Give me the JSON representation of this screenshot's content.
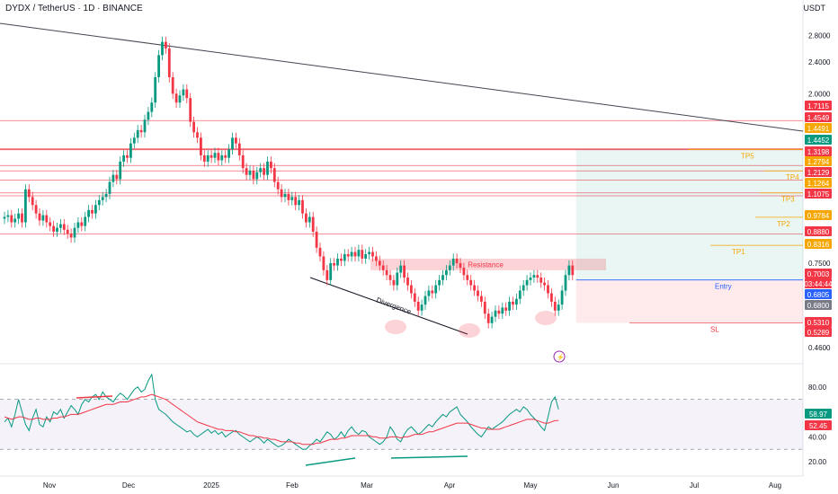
{
  "header": {
    "symbol_title": "DYDX / TetherUS · 1D · BINANCE",
    "currency": "USDT"
  },
  "chart_data": [
    {
      "type": "candlestick",
      "title": "DYDX / TetherUS · 1D · BINANCE",
      "y_scale": "log",
      "ylim": [
        0.43,
        3.1
      ],
      "y_ticks": [
        {
          "value": 2.8,
          "label": "2.8000"
        },
        {
          "value": 2.4,
          "label": "2.4000"
        },
        {
          "value": 2.0,
          "label": "2.0000"
        },
        {
          "value": 0.75,
          "label": "0.7500"
        },
        {
          "value": 0.46,
          "label": "0.4600"
        }
      ],
      "x_ticks": [
        "Nov",
        "Dec",
        "2025",
        "Feb",
        "Mar",
        "Apr",
        "May",
        "Jun",
        "Jul",
        "Aug"
      ],
      "price_path_close": [
        [
          0.98,
          0.99,
          0.95,
          0.97,
          1.0,
          0.95,
          1.15,
          1.1,
          1.05,
          1.0,
          0.96,
          0.99,
          0.95,
          0.93,
          0.9,
          0.92,
          0.94,
          0.91,
          0.89,
          0.87,
          0.92,
          0.95,
          0.93,
          0.98,
          1.02,
          1.0,
          1.05,
          1.08,
          1.1,
          1.12,
          1.2,
          1.25,
          1.22,
          1.35,
          1.4,
          1.38,
          1.5,
          1.55,
          1.62,
          1.6,
          1.72,
          1.8,
          1.9,
          2.2,
          2.5,
          2.7,
          2.6,
          2.2,
          2.0,
          1.9,
          1.98,
          2.05,
          1.95,
          1.7,
          1.6,
          1.55,
          1.4,
          1.35,
          1.4,
          1.38,
          1.42,
          1.36,
          1.4,
          1.38,
          1.45,
          1.55,
          1.5,
          1.4,
          1.3,
          1.25,
          1.28,
          1.22,
          1.27,
          1.3,
          1.25,
          1.35,
          1.3,
          1.2,
          1.15,
          1.1,
          1.12,
          1.08,
          1.1,
          1.05,
          1.08,
          1.0,
          0.95,
          0.98,
          0.9,
          0.82,
          0.78,
          0.72,
          0.68,
          0.75,
          0.74,
          0.77,
          0.76,
          0.79,
          0.78,
          0.8,
          0.78,
          0.81,
          0.77,
          0.79,
          0.8,
          0.78,
          0.76,
          0.74,
          0.72,
          0.7,
          0.68,
          0.66,
          0.71,
          0.74,
          0.69,
          0.66,
          0.63,
          0.6,
          0.57,
          0.59,
          0.62,
          0.64,
          0.63,
          0.66,
          0.68,
          0.7,
          0.72,
          0.74,
          0.77,
          0.75,
          0.73,
          0.7,
          0.68,
          0.66,
          0.64,
          0.62,
          0.6,
          0.56,
          0.53,
          0.55,
          0.57,
          0.56,
          0.58,
          0.57,
          0.6,
          0.59,
          0.61,
          0.64,
          0.66,
          0.68,
          0.69,
          0.7,
          0.69,
          0.67,
          0.66,
          0.63,
          0.6,
          0.57,
          0.59,
          0.64,
          0.7,
          0.74,
          0.7
        ]
      ],
      "resistance_zone": {
        "label": "Resistance",
        "low": 0.72,
        "high": 0.77
      },
      "horizontal_levels": [
        1.7115,
        1.4549,
        1.4491,
        1.4452,
        1.3198,
        1.2794,
        1.2129,
        1.1264,
        1.1075,
        0.888
      ],
      "trade_setup": {
        "entry_label": "Entry",
        "entry": 0.6805,
        "stop_label": "SL",
        "stop": 0.531,
        "targets": [
          {
            "label": "TP1",
            "value": 0.8316
          },
          {
            "label": "TP2",
            "value": 0.9784
          },
          {
            "label": "TP3",
            "value": 1.1264
          },
          {
            "label": "TP4",
            "value": 1.2794
          },
          {
            "label": "TP5",
            "value": 1.4491
          }
        ]
      },
      "annotations": [
        "Divergence"
      ],
      "price_labels": [
        {
          "label": "1.7115",
          "color": "#f23645"
        },
        {
          "label": "1.4549",
          "color": "#f23645"
        },
        {
          "label": "1.4491",
          "color": "#f7a600"
        },
        {
          "label": "1.4452",
          "color": "#089981"
        },
        {
          "label": "1.3198",
          "color": "#f23645"
        },
        {
          "label": "1.2794",
          "color": "#f7a600"
        },
        {
          "label": "1.2129",
          "color": "#f23645"
        },
        {
          "label": "1.1264",
          "color": "#f7a600"
        },
        {
          "label": "1.1075",
          "color": "#f23645"
        },
        {
          "label": "0.9784",
          "color": "#f7a600"
        },
        {
          "label": "0.8880",
          "color": "#f23645"
        },
        {
          "label": "0.8316",
          "color": "#f7a600"
        },
        {
          "label": "0.7003",
          "color": "#f23645"
        },
        {
          "label": "03:44:44",
          "color": "#f23645"
        },
        {
          "label": "0.6805",
          "color": "#2962ff"
        },
        {
          "label": "0.6800",
          "color": "#787b86"
        },
        {
          "label": "0.5310",
          "color": "#f23645"
        },
        {
          "label": "0.5289",
          "color": "#f23645"
        }
      ]
    },
    {
      "type": "line",
      "ylim": [
        10,
        95
      ],
      "y_ticks": [
        {
          "value": 80,
          "label": "80.00"
        },
        {
          "value": 40,
          "label": "40.00"
        },
        {
          "value": 20,
          "label": "20.00"
        }
      ],
      "bands": {
        "upper": 70,
        "lower": 30
      },
      "series": [
        {
          "values": [
            52,
            55,
            48,
            58,
            70,
            60,
            50,
            45,
            55,
            62,
            50,
            48,
            56,
            52,
            60,
            58,
            62,
            55,
            60,
            65,
            62,
            58,
            66,
            70,
            68,
            72,
            74,
            70,
            76,
            72,
            70,
            68,
            72,
            75,
            73,
            70,
            74,
            78,
            80,
            76,
            78,
            85,
            90,
            70,
            62,
            60,
            58,
            55,
            52,
            50,
            48,
            46,
            44,
            45,
            42,
            40,
            42,
            44,
            46,
            43,
            45,
            42,
            44,
            40,
            42,
            44,
            45,
            42,
            40,
            38,
            36,
            38,
            40,
            38,
            35,
            38,
            36,
            34,
            32,
            33,
            35,
            38,
            36,
            34,
            32,
            30,
            30,
            33,
            35,
            38,
            36,
            40,
            44,
            42,
            38,
            40,
            44,
            40,
            45,
            48,
            44,
            42,
            45,
            44,
            40,
            38,
            36,
            34,
            36,
            40,
            48,
            44,
            38,
            36,
            42,
            46,
            48,
            45,
            42,
            44,
            47,
            50,
            48,
            52,
            55,
            58,
            56,
            60,
            62,
            64,
            58,
            55,
            52,
            48,
            45,
            42,
            40,
            44,
            48,
            46,
            48,
            50,
            52,
            55,
            58,
            60,
            62,
            60,
            64,
            62,
            58,
            55,
            52,
            48,
            45,
            56,
            68,
            72,
            62
          ]
        },
        {
          "values": [
            56,
            55,
            54,
            55,
            56,
            56,
            55,
            54,
            54,
            55,
            55,
            54,
            54,
            54,
            55,
            55,
            56,
            56,
            57,
            58,
            58,
            58,
            59,
            60,
            61,
            62,
            63,
            64,
            65,
            66,
            66,
            66,
            67,
            68,
            68,
            68,
            69,
            70,
            71,
            72,
            72,
            73,
            74,
            73,
            72,
            71,
            70,
            68,
            66,
            64,
            62,
            60,
            58,
            56,
            54,
            52,
            51,
            50,
            49,
            48,
            47,
            46,
            46,
            45,
            45,
            45,
            44,
            44,
            43,
            42,
            41,
            41,
            40,
            40,
            39,
            39,
            38,
            38,
            37,
            36,
            36,
            36,
            36,
            35,
            35,
            34,
            34,
            34,
            34,
            35,
            35,
            36,
            37,
            38,
            38,
            38,
            39,
            39,
            40,
            41,
            41,
            41,
            41,
            41,
            41,
            40,
            40,
            39,
            39,
            39,
            40,
            40,
            40,
            39,
            40,
            40,
            41,
            42,
            42,
            42,
            43,
            44,
            44,
            45,
            46,
            47,
            48,
            49,
            50,
            51,
            51,
            51,
            51,
            50,
            49,
            48,
            47,
            47,
            46,
            46,
            46,
            46,
            47,
            48,
            49,
            50,
            51,
            52,
            53,
            54,
            54,
            54,
            53,
            52,
            51,
            51,
            52,
            53,
            53
          ]
        }
      ],
      "price_labels": [
        {
          "label": "58.97",
          "color": "#089981"
        },
        {
          "label": "52.45",
          "color": "#f23645"
        }
      ]
    }
  ],
  "colors": {
    "up": "#089981",
    "down": "#f23645",
    "target": "#f7a600",
    "entry": "#2962ff",
    "grid_band": "#7e57c2"
  }
}
